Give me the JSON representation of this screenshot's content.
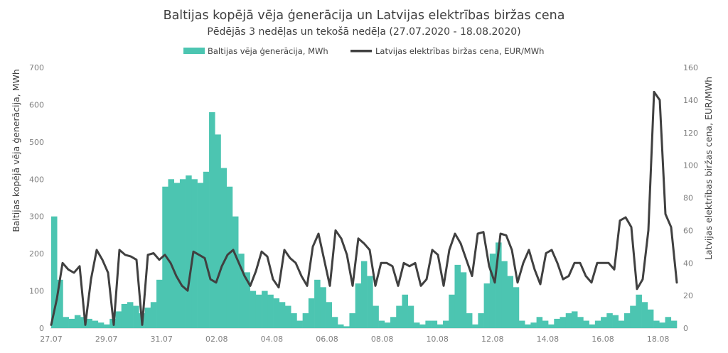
{
  "chart_data": {
    "type": "bar+line",
    "title": "Baltijas kopējā vēja ģenerācija un Latvijas elektrības biržas cena",
    "subtitle": "Pēdējās 3 nedēļas un tekošā nedēļa (27.07.2020 - 18.08.2020)",
    "ylabel_left": "Baltijas kopējā vēja ģenerācija, MWh",
    "ylabel_right": "Latvijas elektrības biržas cena, EUR/MWh",
    "ylim_left": [
      0,
      700
    ],
    "ylim_right": [
      0,
      160
    ],
    "yticks_left": [
      "0",
      "100",
      "200",
      "300",
      "400",
      "500",
      "600",
      "700"
    ],
    "yticks_right": [
      "0",
      "20",
      "40",
      "60",
      "80",
      "100",
      "120",
      "140",
      "160"
    ],
    "x_tick_labels": [
      "27.07",
      "29.07",
      "31.07",
      "02.08",
      "04.08",
      "06.08",
      "08.08",
      "10.08",
      "12.08",
      "14.08",
      "16.08",
      "18.08"
    ],
    "legend_position": "top-center",
    "grid": false,
    "colors": {
      "wind": "#4cc5b1",
      "price": "#404040"
    },
    "series": [
      {
        "name": "Baltijas vēja ģenerācija, MWh",
        "kind": "bar",
        "axis": "left",
        "resolution": "4h",
        "values": [
          300,
          130,
          30,
          25,
          35,
          30,
          25,
          20,
          15,
          10,
          25,
          45,
          65,
          70,
          60,
          40,
          55,
          70,
          130,
          380,
          400,
          390,
          400,
          410,
          400,
          390,
          420,
          580,
          520,
          430,
          380,
          300,
          200,
          150,
          100,
          90,
          100,
          90,
          80,
          70,
          60,
          40,
          20,
          40,
          80,
          130,
          110,
          70,
          30,
          10,
          5,
          40,
          120,
          180,
          140,
          60,
          20,
          15,
          30,
          60,
          90,
          60,
          15,
          10,
          20,
          20,
          10,
          20,
          90,
          170,
          150,
          40,
          10,
          40,
          120,
          200,
          230,
          180,
          140,
          110,
          20,
          10,
          15,
          30,
          20,
          10,
          25,
          30,
          40,
          45,
          30,
          20,
          10,
          20,
          30,
          40,
          35,
          20,
          40,
          60,
          90,
          70,
          50,
          20,
          15,
          30,
          20
        ]
      },
      {
        "name": "Latvijas elektrības biržas cena, EUR/MWh",
        "kind": "line",
        "axis": "right",
        "resolution": "4h",
        "values": [
          2,
          18,
          40,
          36,
          34,
          38,
          2,
          30,
          48,
          42,
          34,
          2,
          48,
          45,
          44,
          42,
          2,
          45,
          46,
          42,
          45,
          40,
          32,
          26,
          23,
          47,
          45,
          43,
          30,
          28,
          38,
          45,
          48,
          40,
          32,
          26,
          35,
          47,
          44,
          30,
          25,
          48,
          43,
          40,
          32,
          26,
          50,
          58,
          42,
          26,
          60,
          55,
          45,
          26,
          55,
          52,
          48,
          26,
          40,
          40,
          38,
          26,
          40,
          38,
          40,
          26,
          30,
          48,
          45,
          26,
          48,
          58,
          52,
          42,
          32,
          58,
          59,
          38,
          28,
          58,
          57,
          48,
          28,
          40,
          48,
          36,
          27,
          46,
          48,
          40,
          30,
          32,
          40,
          40,
          32,
          28,
          40,
          40,
          40,
          36,
          66,
          68,
          62,
          24,
          30,
          60,
          145,
          140,
          70,
          62,
          28
        ]
      }
    ]
  }
}
